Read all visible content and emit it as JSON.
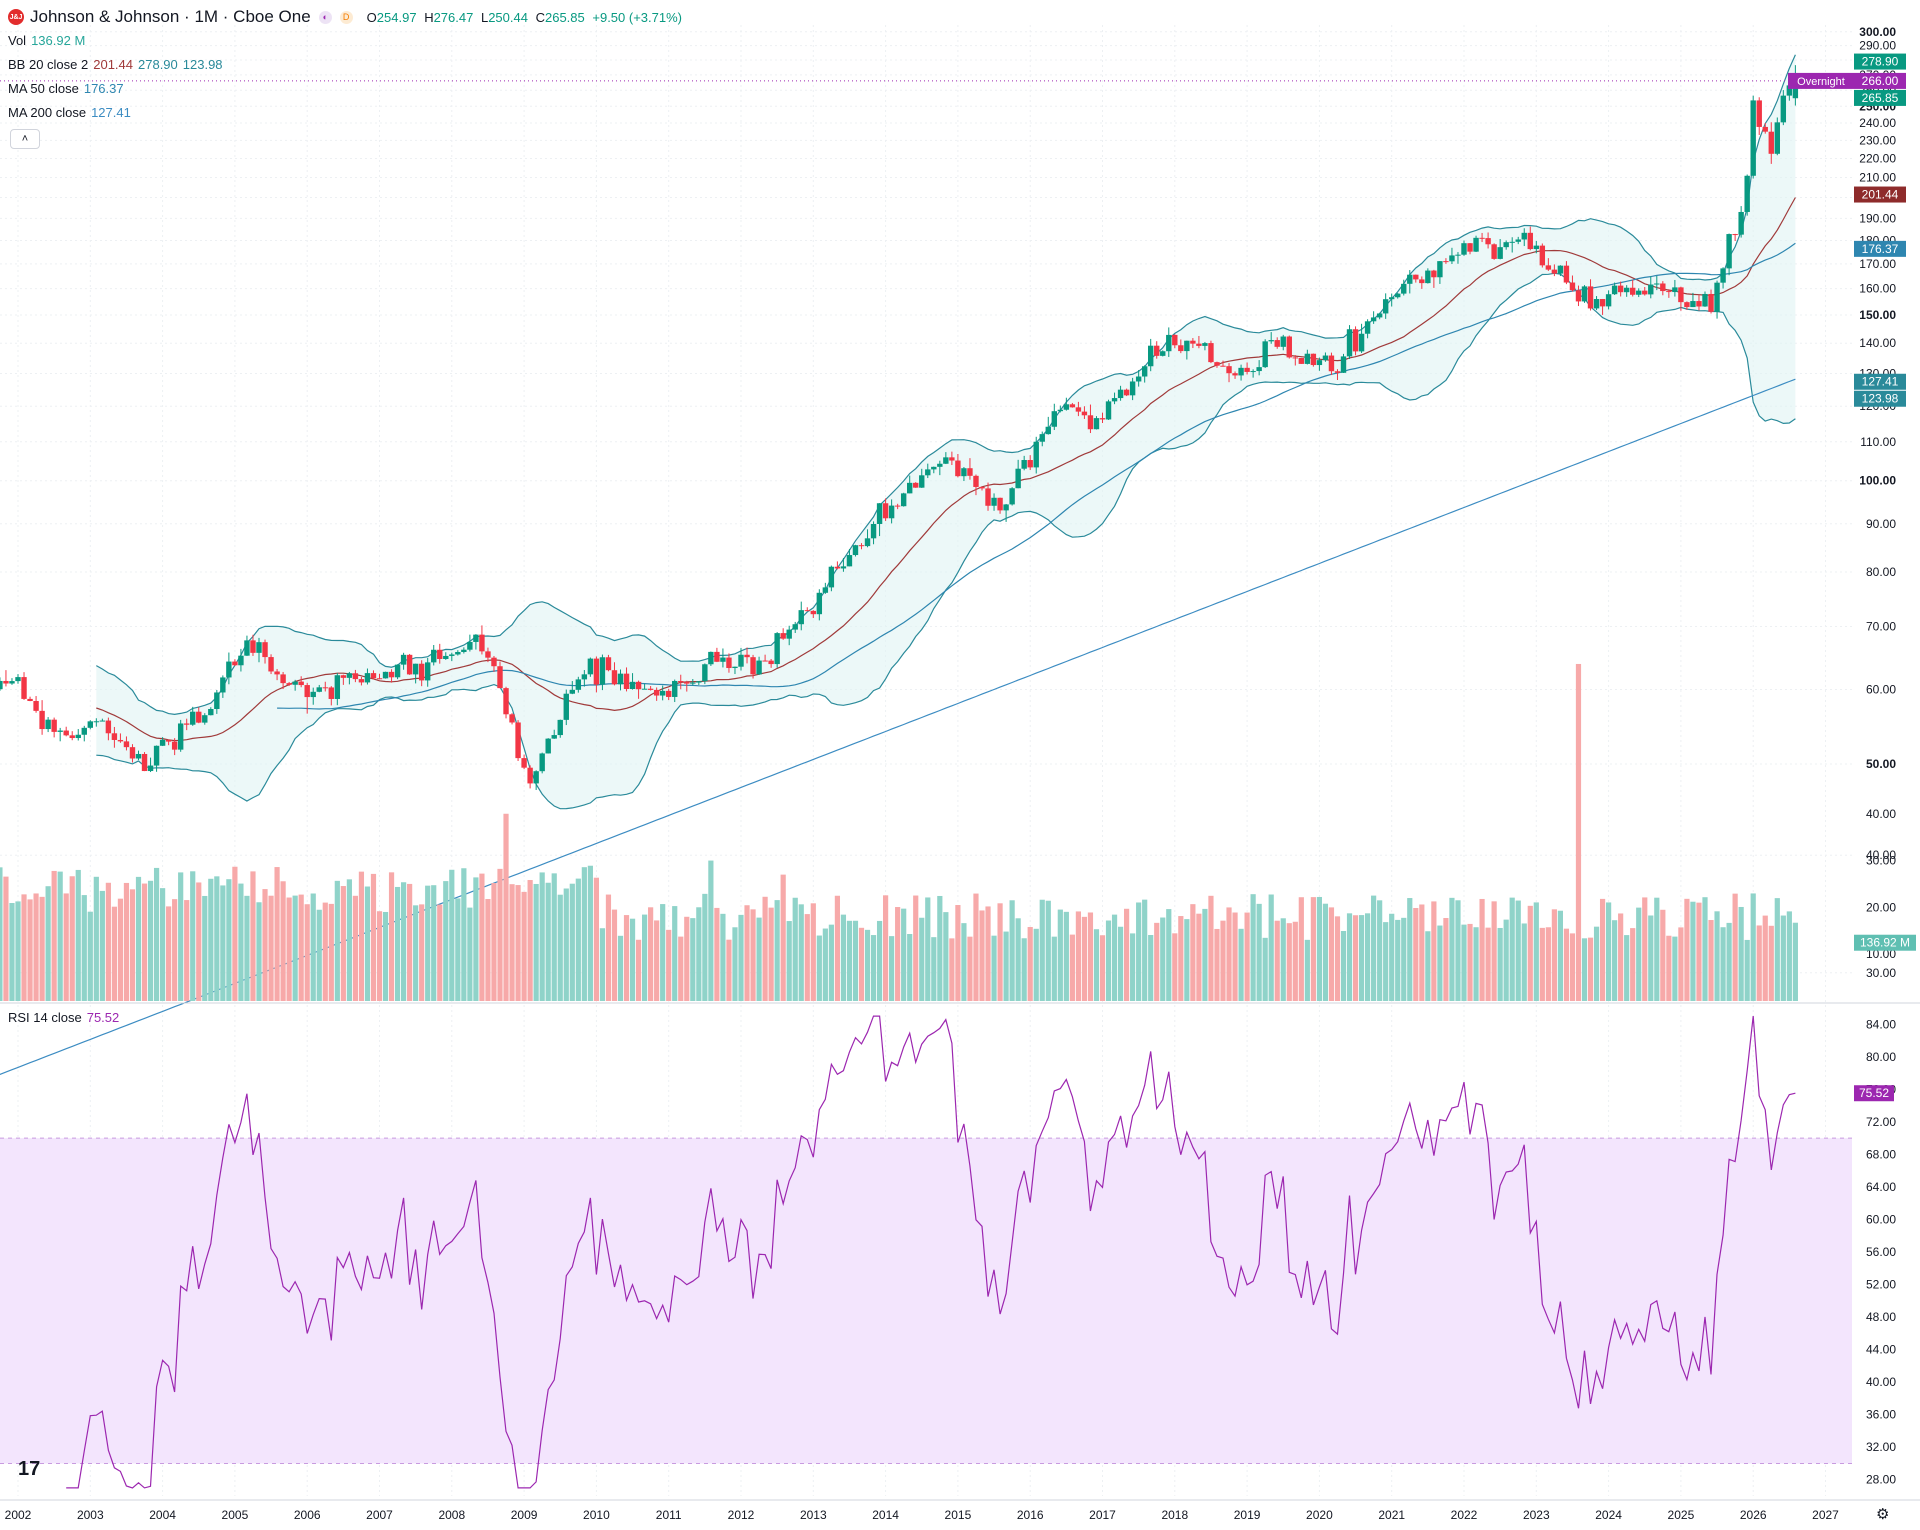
{
  "header": {
    "logo_text": "J&J",
    "title": "Johnson & Johnson · 1M · Cboe One",
    "badge1": "◐",
    "badge2": "D",
    "open_label": "O",
    "open": "254.97",
    "high_label": "H",
    "high": "276.47",
    "low_label": "L",
    "low": "250.44",
    "close_label": "C",
    "close": "265.85",
    "change": "+9.50 (+3.71%)"
  },
  "legends": {
    "vol": {
      "name": "Vol",
      "value": "136.92 M"
    },
    "bb": {
      "name": "BB",
      "params": "20 close 2",
      "basis": "201.44",
      "upper": "278.90",
      "lower": "123.98"
    },
    "ma50": {
      "name": "MA",
      "params": "50 close",
      "value": "176.37"
    },
    "ma200": {
      "name": "MA",
      "params": "200 close",
      "value": "127.41"
    },
    "rsi": {
      "name": "RSI",
      "params": "14 close",
      "value": "75.52"
    }
  },
  "collapse_icon": "˄",
  "tv_logo": "17",
  "settings_icon": "⚙",
  "colors": {
    "up": "#089981",
    "down": "#f23645",
    "vol_up": "#8fd3c9",
    "vol_down": "#f7a9a9",
    "bb_line": "#2a8a9a",
    "bb_basis": "#a03a3a",
    "bb_fill": "#e0f3f3",
    "ma50": "#2e86b0",
    "ma200": "#3c8cc2",
    "rsi": "#9c27b0",
    "rsi_band": "#f3e5fd",
    "overnight": "#9c27b0"
  },
  "chart_data": {
    "type": "candlestick",
    "interval": "1M",
    "price_scale": {
      "type": "log",
      "range": [
        28,
        305
      ],
      "ticks": [
        "300.00",
        "290.00",
        "280.00",
        "270.00",
        "260.00",
        "250.00",
        "240.00",
        "230.00",
        "220.00",
        "210.00",
        "200.00",
        "190.00",
        "180.00",
        "170.00",
        "160.00",
        "150.00",
        "140.00",
        "130.00",
        "120.00",
        "110.00",
        "100.00",
        "90.00",
        "80.00",
        "70.00",
        "60.00",
        "50.00",
        "40.00",
        "30.00",
        "20.00",
        "10.00"
      ],
      "bold_ticks": [
        "300.00",
        "250.00",
        "150.00",
        "100.00",
        "50.00"
      ]
    },
    "x_axis": {
      "labels": [
        "2002",
        "2003",
        "2004",
        "2005",
        "2006",
        "2007",
        "2008",
        "2009",
        "2010",
        "2011",
        "2012",
        "2013",
        "2014",
        "2015",
        "2016",
        "2017",
        "2018",
        "2019",
        "2020",
        "2021",
        "2022",
        "2023",
        "2024",
        "2025",
        "2026",
        "2027"
      ]
    },
    "price_keyframes": [
      [
        "2002-01",
        61
      ],
      [
        "2002-06",
        54
      ],
      [
        "2002-10",
        53
      ],
      [
        "2003-03",
        55
      ],
      [
        "2003-10",
        50
      ],
      [
        "2004-06",
        55
      ],
      [
        "2005-03",
        67
      ],
      [
        "2005-12",
        60
      ],
      [
        "2006-06",
        61
      ],
      [
        "2007-06",
        63
      ],
      [
        "2008-06",
        67
      ],
      [
        "2009-02",
        48
      ],
      [
        "2009-12",
        64
      ],
      [
        "2010-06",
        60
      ],
      [
        "2011-01",
        60
      ],
      [
        "2011-09",
        64
      ],
      [
        "2012-06",
        65
      ],
      [
        "2013-01",
        75
      ],
      [
        "2013-12",
        92
      ],
      [
        "2014-11",
        107
      ],
      [
        "2015-08",
        94
      ],
      [
        "2016-07",
        122
      ],
      [
        "2016-11",
        113
      ],
      [
        "2017-12",
        142
      ],
      [
        "2018-12",
        129
      ],
      [
        "2019-06",
        140
      ],
      [
        "2020-03",
        130
      ],
      [
        "2021-01",
        157
      ],
      [
        "2022-04",
        180
      ],
      [
        "2022-12",
        177
      ],
      [
        "2023-09",
        156
      ],
      [
        "2024-03",
        158
      ],
      [
        "2024-10",
        160
      ],
      [
        "2025-04",
        156
      ],
      [
        "2025-06",
        153
      ],
      [
        "2025-09",
        178
      ],
      [
        "2025-12",
        206
      ],
      [
        "2026-01",
        250
      ],
      [
        "2026-04",
        225
      ],
      [
        "2026-06",
        258
      ],
      [
        "2026-08",
        266
      ]
    ],
    "last_candle": {
      "date": "2026-08",
      "open": 254.97,
      "high": 276.47,
      "low": 250.44,
      "close": 265.85
    },
    "price_labels": [
      {
        "text": "278.90",
        "value": 278.9,
        "kind": "bb_upper"
      },
      {
        "text": "266.00",
        "value": 266.0,
        "kind": "overnight",
        "prefix": "Overnight"
      },
      {
        "text": "265.85",
        "value": 265.85,
        "kind": "close"
      },
      {
        "text": "201.44",
        "value": 201.44,
        "kind": "bb_basis"
      },
      {
        "text": "176.37",
        "value": 176.37,
        "kind": "ma50"
      },
      {
        "text": "127.41",
        "value": 127.41,
        "kind": "ma200"
      },
      {
        "text": "123.98",
        "value": 123.98,
        "kind": "bb_lower"
      }
    ],
    "volume": {
      "unit": "M",
      "last": "136.92 M",
      "spikes": [
        {
          "date": "2008-10",
          "value": 40
        },
        {
          "date": "2009-03",
          "value": 25
        },
        {
          "date": "2011-08",
          "value": 30
        },
        {
          "date": "2012-08",
          "value": 27
        },
        {
          "date": "2020-03",
          "value": 20
        },
        {
          "date": "2023-08",
          "value": 72
        }
      ]
    },
    "rsi": {
      "period": 14,
      "last": "75.52",
      "range": [
        26,
        86
      ],
      "ticks": [
        "84.00",
        "80.00",
        "76.00",
        "72.00",
        "68.00",
        "64.00",
        "60.00",
        "56.00",
        "52.00",
        "48.00",
        "44.00",
        "40.00",
        "36.00",
        "32.00",
        "28.00"
      ],
      "upper_band": 70,
      "lower_band": 30
    }
  }
}
